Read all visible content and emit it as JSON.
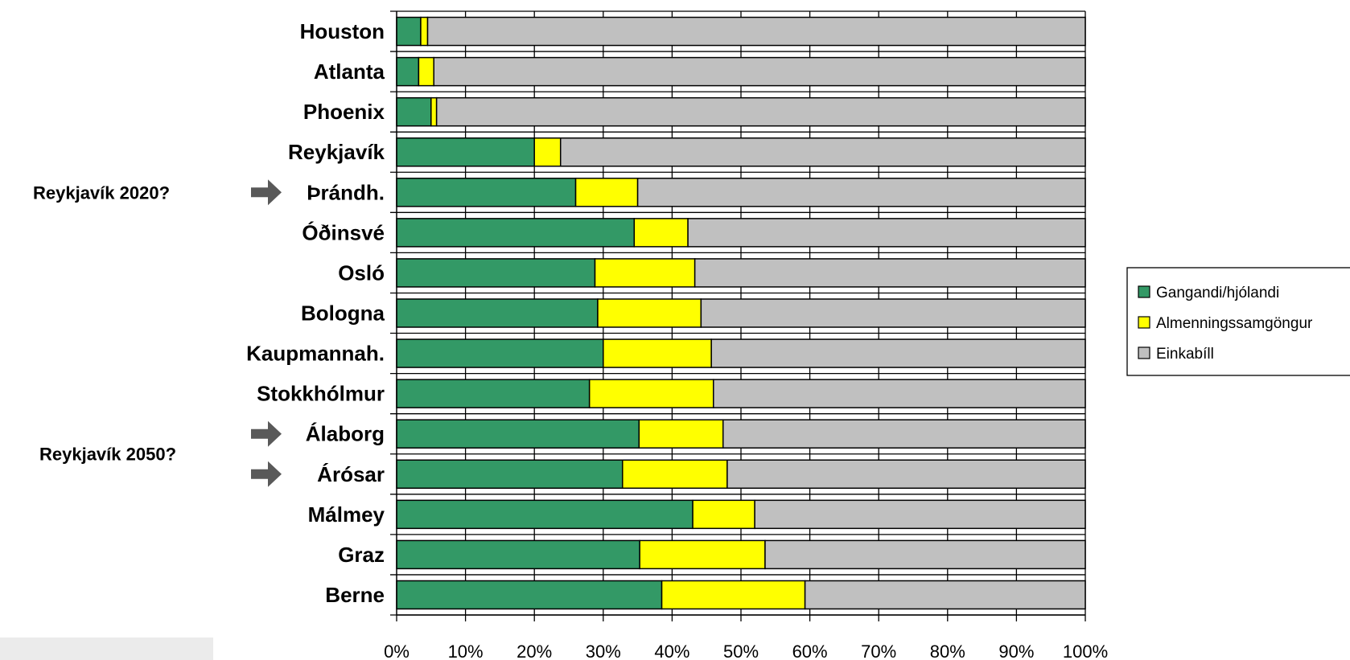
{
  "chart_data": {
    "type": "bar",
    "orientation": "horizontal",
    "stacked": true,
    "percent": true,
    "categories": [
      "Houston",
      "Atlanta",
      "Phoenix",
      "Reykjavík",
      "Þrándh.",
      "Óðinsvé",
      "Osló",
      "Bologna",
      "Kaupmannah.",
      "Stokkhólmur",
      "Álaborg",
      "Árósar",
      "Málmey",
      "Graz",
      "Berne"
    ],
    "series": [
      {
        "name": "Gangandi/hjólandi",
        "color": "#339966",
        "values": [
          3.5,
          3.2,
          5.0,
          20.0,
          26.0,
          34.5,
          28.8,
          29.2,
          30.0,
          28.0,
          35.2,
          32.8,
          43.0,
          35.3,
          38.5
        ]
      },
      {
        "name": "Almenningssamgöngur",
        "color": "#ffff00",
        "values": [
          1.0,
          2.2,
          0.8,
          3.8,
          9.0,
          7.8,
          14.5,
          15.0,
          15.7,
          18.0,
          12.2,
          15.2,
          9.0,
          18.2,
          20.8
        ]
      },
      {
        "name": "Einkabíll",
        "color": "#c0c0c0",
        "values": [
          95.5,
          94.6,
          94.2,
          76.2,
          65.0,
          57.7,
          56.7,
          55.8,
          54.3,
          54.0,
          52.6,
          52.0,
          48.0,
          46.5,
          40.7
        ]
      }
    ],
    "xlim": [
      0,
      100
    ],
    "x_ticks": [
      "0%",
      "10%",
      "20%",
      "30%",
      "40%",
      "50%",
      "60%",
      "70%",
      "80%",
      "90%",
      "100%"
    ],
    "grid": true,
    "legend_position": "right",
    "annotations": [
      {
        "text": "Reykjavík 2020?",
        "points_to": [
          "Þrándh."
        ]
      },
      {
        "text": "Reykjavík 2050?",
        "points_to": [
          "Álaborg",
          "Árósar"
        ]
      }
    ],
    "arrow_color": "#595959"
  }
}
